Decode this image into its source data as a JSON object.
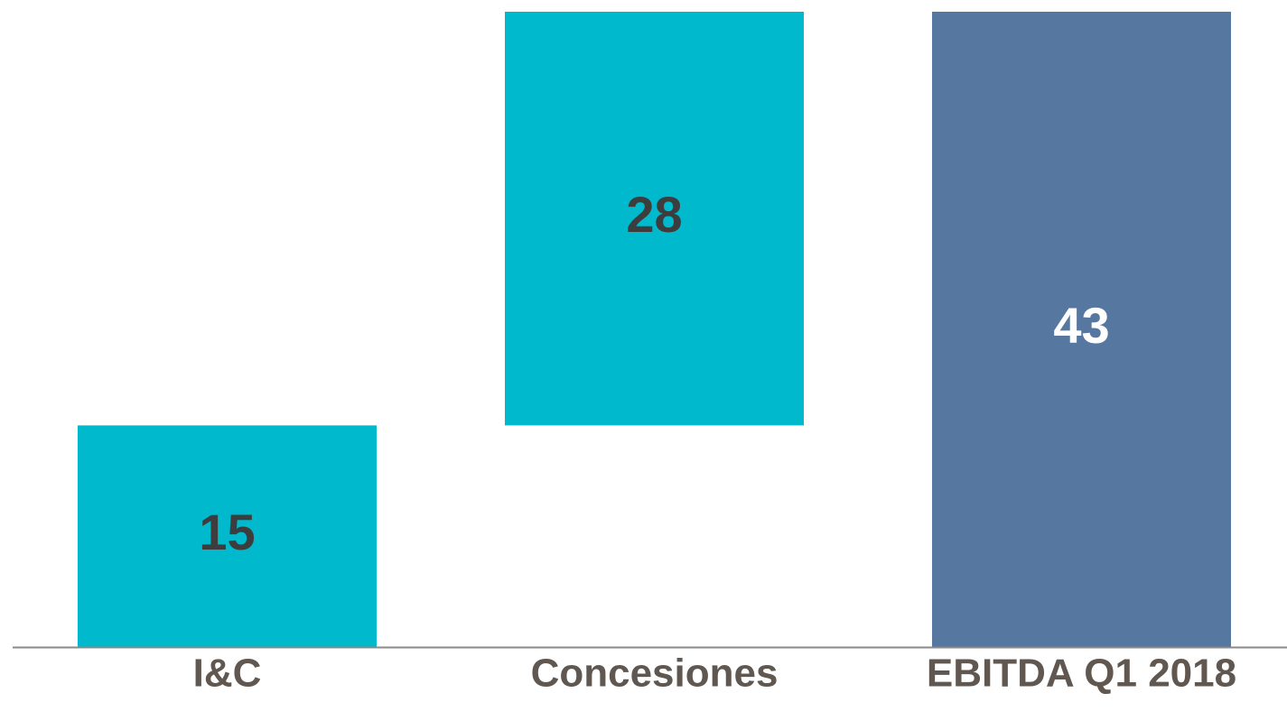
{
  "chart_data": {
    "type": "bar",
    "subtype": "waterfall",
    "categories": [
      "I&C",
      "Concesiones",
      "EBITDA Q1 2018"
    ],
    "values": [
      15,
      28,
      43
    ],
    "bases": [
      0,
      15,
      0
    ],
    "data_labels": [
      "15",
      "28",
      "43"
    ],
    "bar_colors": [
      "#00b9cc",
      "#00b9cc",
      "#56779f"
    ],
    "label_colors": [
      "#3d3d3d",
      "#3d3d3d",
      "#ffffff"
    ],
    "category_label_color": "#5f5750",
    "axis_color": "#8a8a8a",
    "ylim": [
      0,
      43
    ],
    "grid": false,
    "legend": "none",
    "title": "",
    "xlabel": "",
    "ylabel": ""
  }
}
